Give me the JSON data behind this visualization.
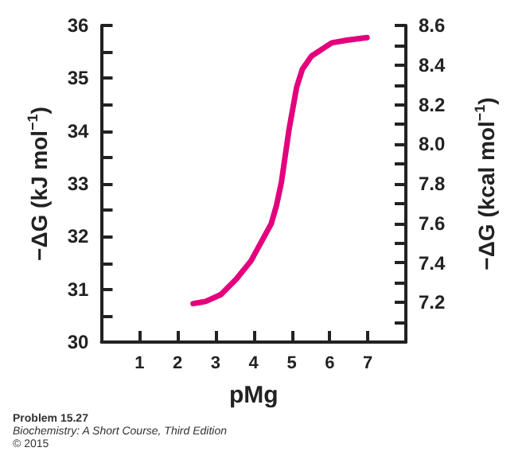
{
  "chart_data": {
    "type": "line",
    "xlabel": "pMg",
    "ylabel": "−ΔG (kJ mol$^{−1}$)",
    "y2label": "−ΔG (kcal mol$^{−1}$)",
    "x": [
      2.41,
      2.74,
      3.14,
      3.54,
      3.93,
      4.46,
      4.6,
      4.73,
      4.83,
      4.93,
      5.13,
      5.28,
      5.52,
      6.05,
      6.45,
      6.98
    ],
    "series": [
      {
        "color": "#e4007c",
        "values": [
          30.73,
          30.77,
          30.9,
          31.19,
          31.54,
          32.24,
          32.59,
          33.03,
          33.53,
          34.03,
          34.83,
          35.17,
          35.42,
          35.67,
          35.72,
          35.77
        ]
      }
    ],
    "xlim": [
      0,
      8
    ],
    "xticks": [
      1,
      2,
      3,
      4,
      5,
      6,
      7
    ],
    "ylim": [
      30,
      36
    ],
    "yticks": [
      30,
      {
        "value": 30.5,
        "label": null
      },
      31,
      {
        "value": 31.5,
        "label": null
      },
      32,
      {
        "value": 32.5,
        "label": null
      },
      33,
      {
        "value": 33.5,
        "label": null
      },
      34,
      {
        "value": 34.5,
        "label": null
      },
      35,
      {
        "value": 35.5,
        "label": null
      },
      36
    ],
    "y2lim": [
      7.0,
      8.6
    ],
    "y2ticks": [
      {
        "value": 7.1,
        "label": null
      },
      {
        "value": 7.2,
        "label": "7.2"
      },
      {
        "value": 7.3,
        "label": null
      },
      {
        "value": 7.4,
        "label": "7.4"
      },
      {
        "value": 7.5,
        "label": null
      },
      {
        "value": 7.6,
        "label": "7.6"
      },
      {
        "value": 7.7,
        "label": null
      },
      {
        "value": 7.8,
        "label": "7.8"
      },
      {
        "value": 7.9,
        "label": null
      },
      {
        "value": 8.0,
        "label": "8.0"
      },
      {
        "value": 8.1,
        "label": null
      },
      {
        "value": 8.2,
        "label": "8.2"
      },
      {
        "value": 8.3,
        "label": null
      },
      {
        "value": 8.4,
        "label": "8.4"
      },
      {
        "value": 8.5,
        "label": null
      },
      {
        "value": 8.6,
        "label": "8.6"
      }
    ],
    "grid": false,
    "marker": "none",
    "line_style": "solid",
    "annotations": [
      "Problem 15.27",
      "Biochemistry: A Short Course, Third Edition",
      "© 2015"
    ]
  }
}
